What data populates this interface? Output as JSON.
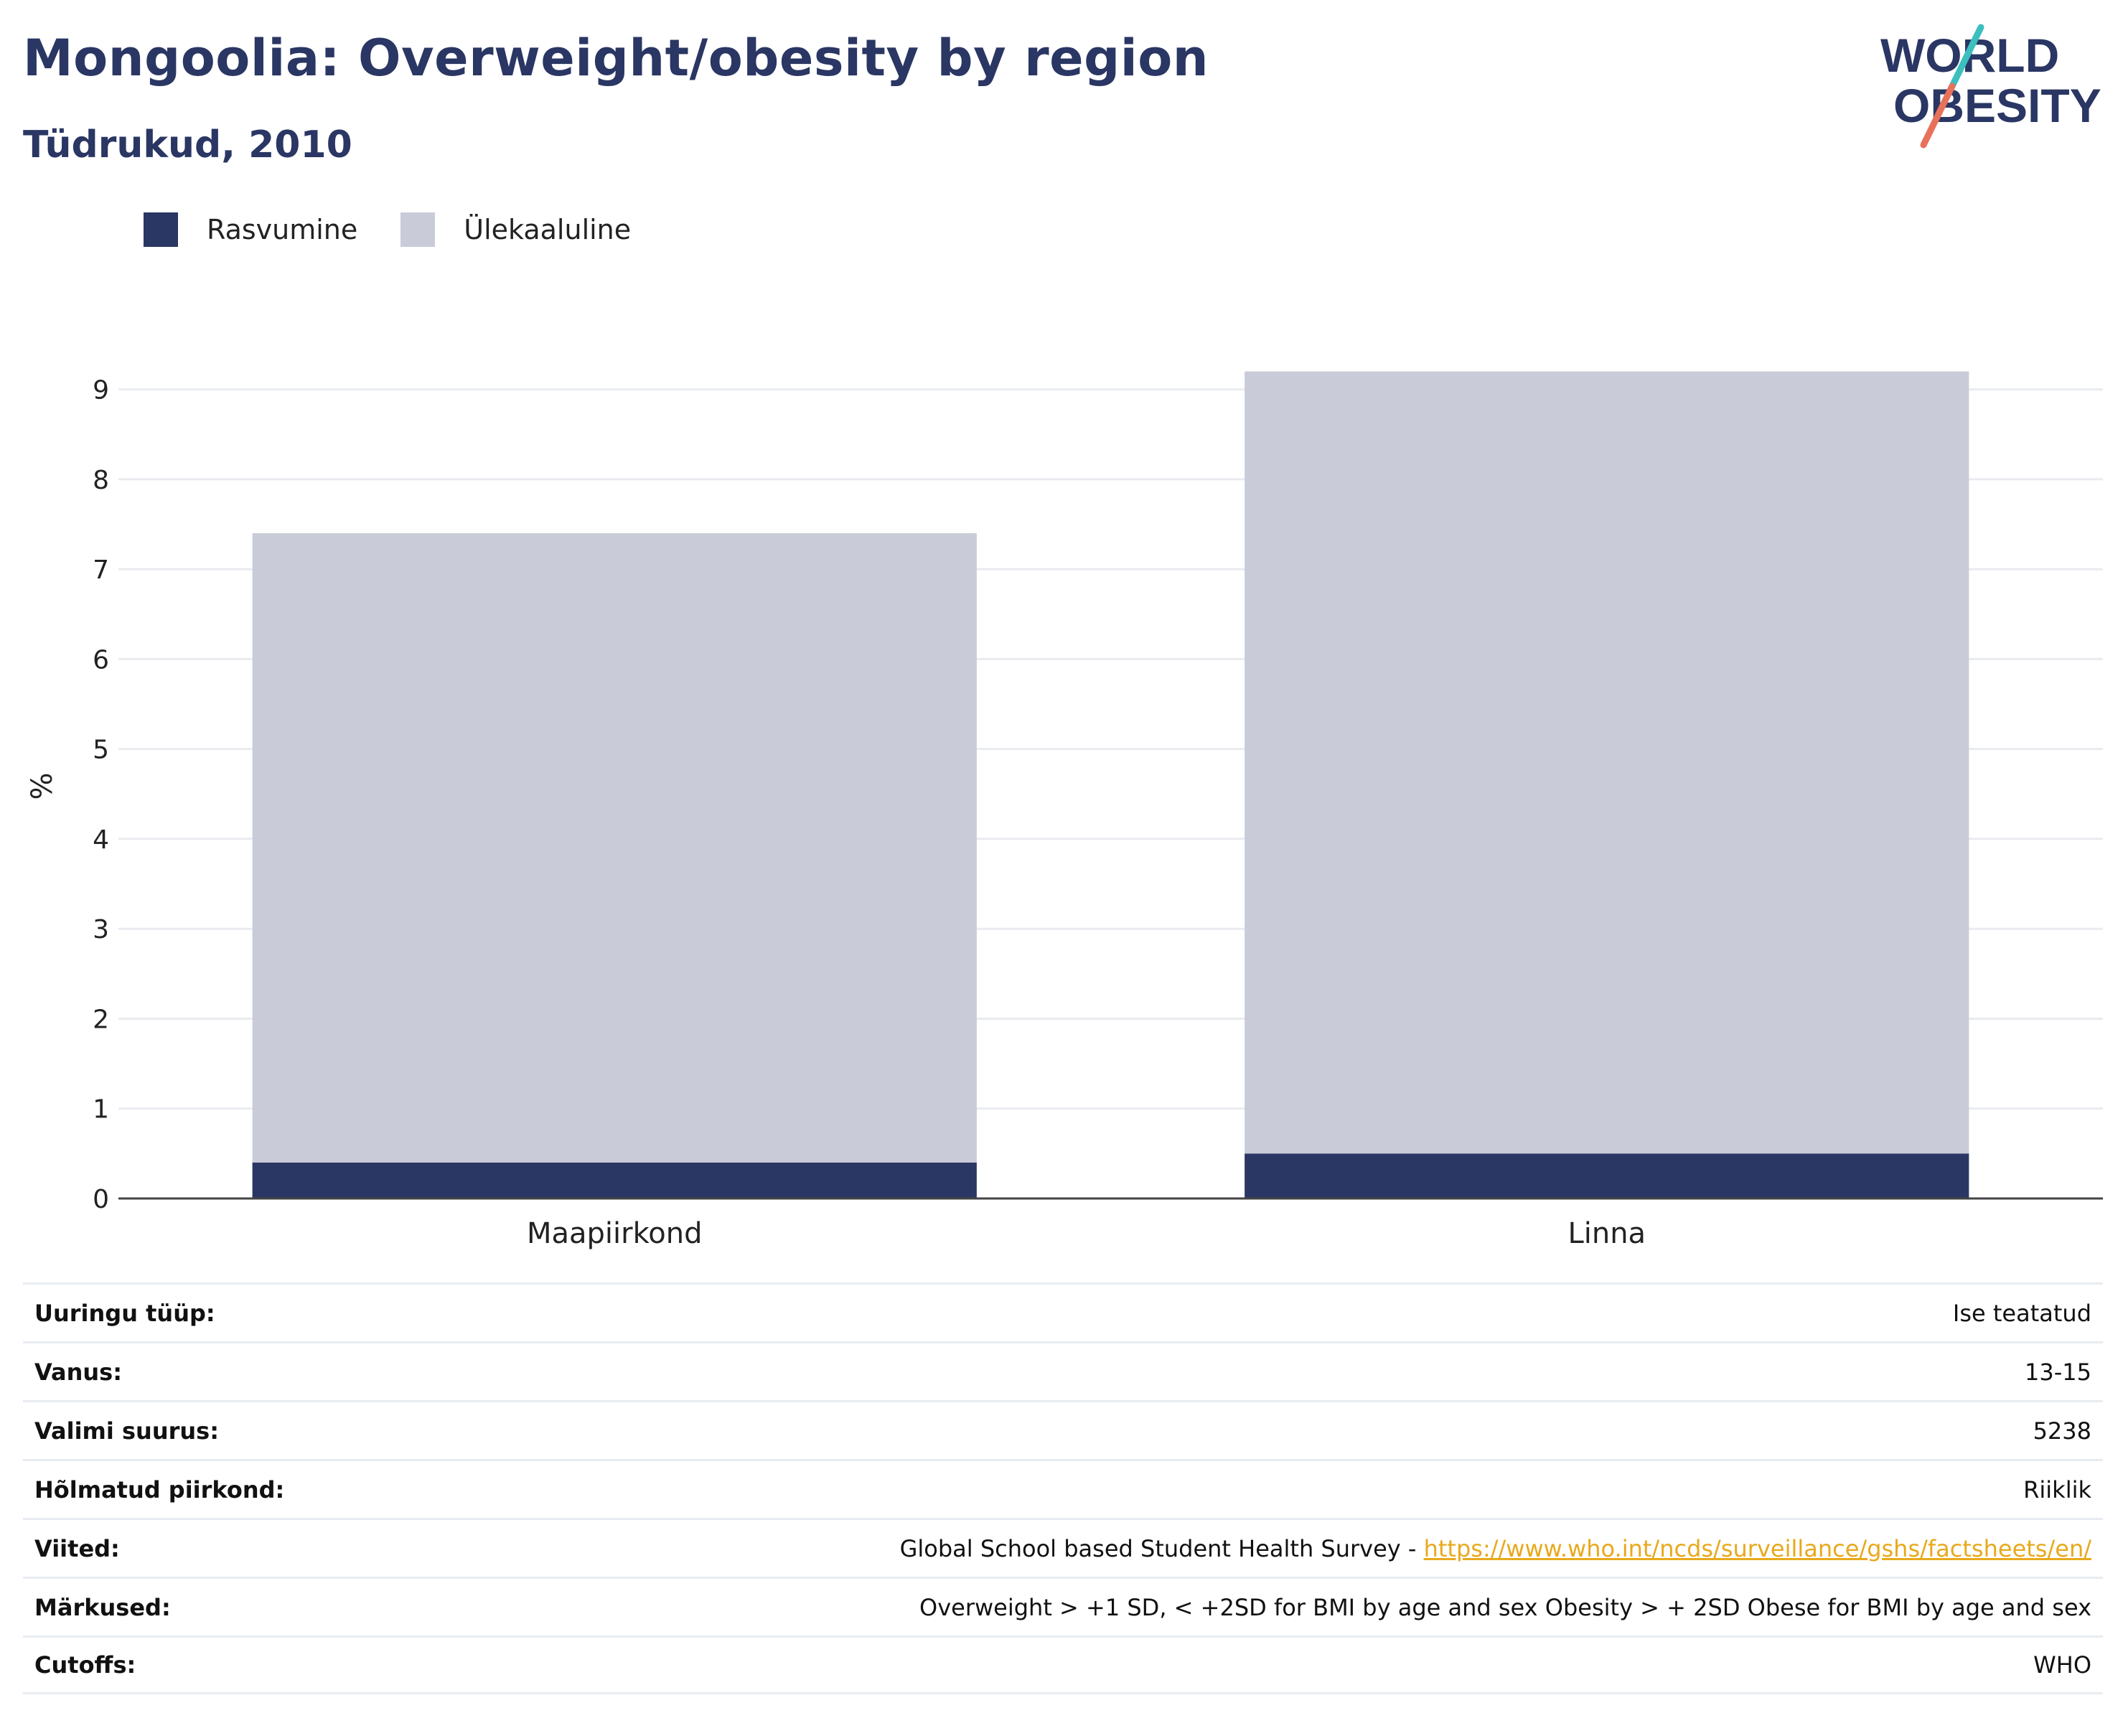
{
  "header": {
    "title": "Mongoolia: Overweight/obesity by region",
    "subtitle": "Tüdrukud, 2010"
  },
  "logo": {
    "line1": "WORLD",
    "line2": "OBESITY",
    "colors": {
      "text": "#2a3663",
      "accent_teal": "#3bbfbf",
      "accent_coral": "#e8715a"
    }
  },
  "chart_data": {
    "type": "bar",
    "stacked": true,
    "categories": [
      "Maapiirkond",
      "Linna"
    ],
    "series": [
      {
        "name": "Rasvumine",
        "values": [
          0.4,
          0.5
        ],
        "color": "#2a3663"
      },
      {
        "name": "Ülekaaluline",
        "values": [
          7.0,
          8.7
        ],
        "color": "#c9ccd8"
      }
    ],
    "xlabel": "",
    "ylabel": "%",
    "ylim": [
      0,
      9.3
    ],
    "yticks": [
      "0",
      "1",
      "2",
      "3",
      "4",
      "5",
      "6",
      "7",
      "8",
      "9"
    ],
    "grid": true,
    "legend_position": "top-left"
  },
  "info_table": [
    {
      "label": "Uuringu tüüp:",
      "value": "Ise teatatud"
    },
    {
      "label": "Vanus:",
      "value": "13-15"
    },
    {
      "label": "Valimi suurus:",
      "value": "5238"
    },
    {
      "label": "Hõlmatud piirkond:",
      "value": "Riiklik"
    },
    {
      "label": "Viited:",
      "value": "Global School based Student Health Survey - ",
      "link": "https://www.who.int/ncds/surveillance/gshs/factsheets/en/"
    },
    {
      "label": "Märkused:",
      "value": "Overweight > +1 SD, < +2SD for BMI by age and sex Obesity > + 2SD Obese for BMI by age and sex"
    },
    {
      "label": "Cutoffs:",
      "value": "WHO"
    }
  ]
}
